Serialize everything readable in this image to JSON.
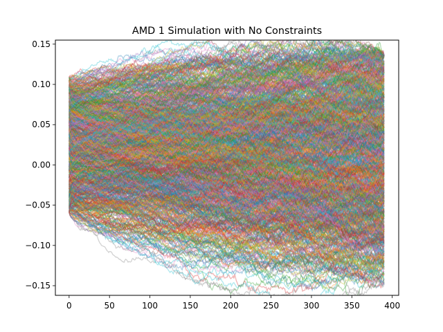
{
  "chart_data": {
    "type": "line",
    "title": "AMD 1 Simulation with No Constraints",
    "xlabel": "",
    "ylabel": "",
    "xlim": [
      -17,
      408
    ],
    "ylim": [
      -0.162,
      0.155
    ],
    "xticks": [
      0,
      50,
      100,
      150,
      200,
      250,
      300,
      350,
      400
    ],
    "yticks": [
      -0.15,
      -0.1,
      -0.05,
      0.0,
      0.05,
      0.1,
      0.15
    ],
    "xtick_labels": [
      "0",
      "50",
      "100",
      "150",
      "200",
      "250",
      "300",
      "350",
      "400"
    ],
    "ytick_labels": [
      "−0.15",
      "−0.10",
      "−0.05",
      "0.00",
      "0.05",
      "0.10",
      "0.15"
    ],
    "grid": false,
    "legend": "none",
    "series_count": 1000,
    "steps_per_series": 391,
    "x_range": [
      0,
      390
    ],
    "start_value_range": [
      -0.06,
      0.11
    ],
    "end_value_range": [
      -0.148,
      0.136
    ],
    "line_alpha": 0.35,
    "palette": [
      "#1f77b4",
      "#ff7f0e",
      "#2ca02c",
      "#d62728",
      "#9467bd",
      "#8c564b",
      "#e377c2",
      "#7f7f7f",
      "#bcbd22",
      "#17becf"
    ]
  }
}
